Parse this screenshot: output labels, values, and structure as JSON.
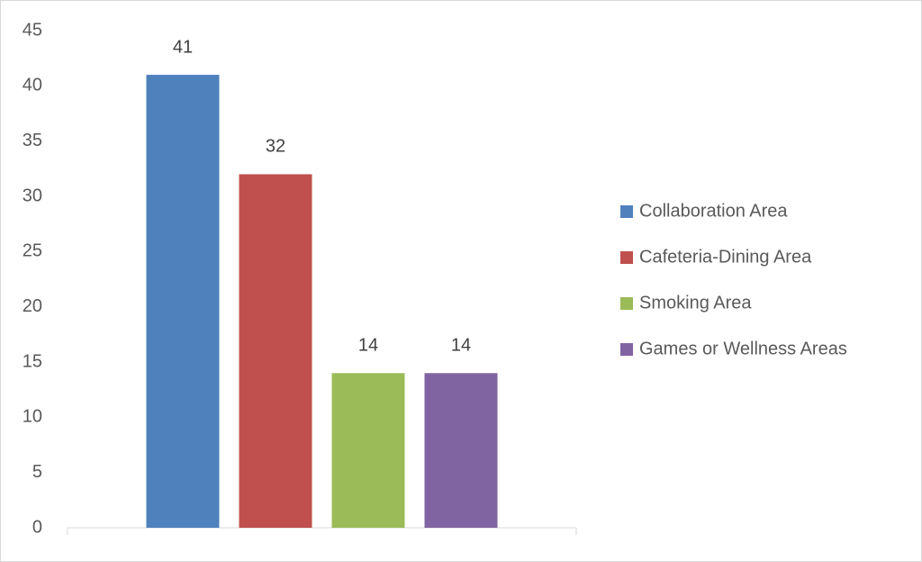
{
  "chart_data": {
    "type": "bar",
    "categories": [
      null
    ],
    "series": [
      {
        "name": "Collaboration Area",
        "color": "#4f81bd",
        "values": [
          41
        ]
      },
      {
        "name": "Cafeteria-Dining Area",
        "color": "#c0504d",
        "values": [
          32
        ]
      },
      {
        "name": "Smoking Area",
        "color": "#9bbb59",
        "values": [
          14
        ]
      },
      {
        "name": "Games or Wellness Areas",
        "color": "#8064a2",
        "values": [
          14
        ]
      }
    ],
    "ylim": [
      0,
      45
    ],
    "yticks": [
      0,
      5,
      10,
      15,
      20,
      25,
      30,
      35,
      40,
      45
    ],
    "grid": false,
    "legend": "right",
    "data_labels": true
  }
}
